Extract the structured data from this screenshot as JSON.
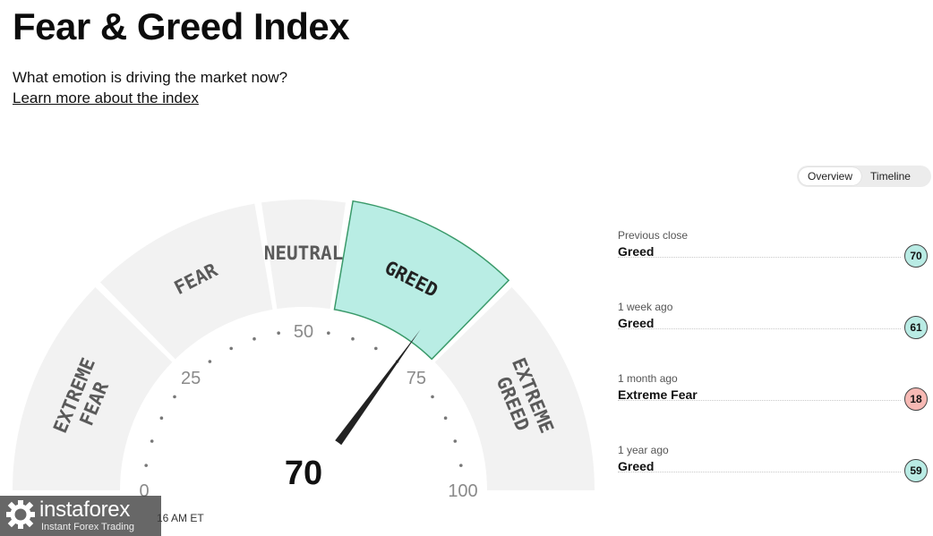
{
  "header": {
    "title": "Fear & Greed Index",
    "subtitle": "What emotion is driving the market now?",
    "learn_link": "Learn more about the index"
  },
  "view_toggle": {
    "options": [
      "Overview",
      "Timeline"
    ],
    "selected": "Overview"
  },
  "gauge": {
    "value": 70,
    "value_label": "70",
    "scale_labels": [
      "0",
      "25",
      "50",
      "75",
      "100"
    ],
    "segments": [
      "EXTREME FEAR",
      "FEAR",
      "NEUTRAL",
      "GREED",
      "EXTREME GREED"
    ],
    "active_segment": "GREED"
  },
  "history": [
    {
      "when": "Previous close",
      "rating": "Greed",
      "value": "70",
      "color": "#b9ebe4"
    },
    {
      "when": "1 week ago",
      "rating": "Greed",
      "value": "61",
      "color": "#b9ebe4"
    },
    {
      "when": "1 month ago",
      "rating": "Extreme Fear",
      "value": "18",
      "color": "#f7b9b4"
    },
    {
      "when": "1 year ago",
      "rating": "Greed",
      "value": "59",
      "color": "#b9ebe4"
    }
  ],
  "timestamp": "16 AM ET",
  "watermark": {
    "brand": "instaforex",
    "tagline": "Instant Forex Trading"
  },
  "colors": {
    "segment_fill": "#f2f2f2",
    "active_fill": "#b9ede4",
    "active_stroke": "#3a9a6a",
    "needle": "#222222",
    "greed_badge": "#b9ebe4",
    "fear_badge": "#f7b9b4"
  }
}
